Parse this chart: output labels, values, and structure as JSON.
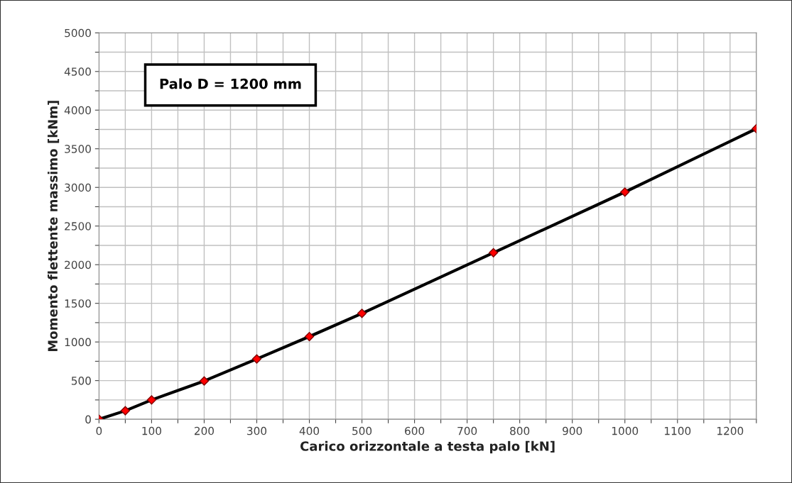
{
  "chart_data": {
    "type": "line",
    "title": "Palo D = 1200 mm",
    "xlabel": "Carico orizzontale a testa palo [kN]",
    "ylabel": "Momento flettente massimo [kNm]",
    "x": [
      0,
      50,
      100,
      200,
      300,
      400,
      500,
      750,
      1000,
      1250
    ],
    "series": [
      {
        "color": "#000000",
        "values": [
          0,
          110,
          250,
          495,
          780,
          1070,
          1370,
          2155,
          2940,
          3760
        ]
      }
    ],
    "marker": "diamond",
    "line_style": "solid",
    "grid": true,
    "legend": false,
    "xlim": [
      0,
      1250
    ],
    "xticks": [
      0,
      {
        "value": 50,
        "label": null
      },
      100,
      {
        "value": 150,
        "label": null
      },
      200,
      {
        "value": 250,
        "label": null
      },
      300,
      {
        "value": 350,
        "label": null
      },
      400,
      {
        "value": 450,
        "label": null
      },
      500,
      {
        "value": 550,
        "label": null
      },
      600,
      {
        "value": 650,
        "label": null
      },
      700,
      {
        "value": 750,
        "label": null
      },
      800,
      {
        "value": 850,
        "label": null
      },
      900,
      {
        "value": 950,
        "label": null
      },
      1000,
      {
        "value": 1050,
        "label": null
      },
      1100,
      {
        "value": 1150,
        "label": null
      },
      1200,
      {
        "value": 1250,
        "label": null
      }
    ],
    "ylim": [
      0,
      5000
    ],
    "yticks": [
      0,
      {
        "value": 250,
        "label": null
      },
      500,
      {
        "value": 750,
        "label": null
      },
      1000,
      {
        "value": 1250,
        "label": null
      },
      1500,
      {
        "value": 1750,
        "label": null
      },
      2000,
      {
        "value": 2250,
        "label": null
      },
      2500,
      {
        "value": 2750,
        "label": null
      },
      3000,
      {
        "value": 3250,
        "label": null
      },
      3500,
      {
        "value": 3750,
        "label": null
      },
      4000,
      {
        "value": 4250,
        "label": null
      },
      4500,
      {
        "value": 4750,
        "label": null
      },
      5000
    ]
  }
}
